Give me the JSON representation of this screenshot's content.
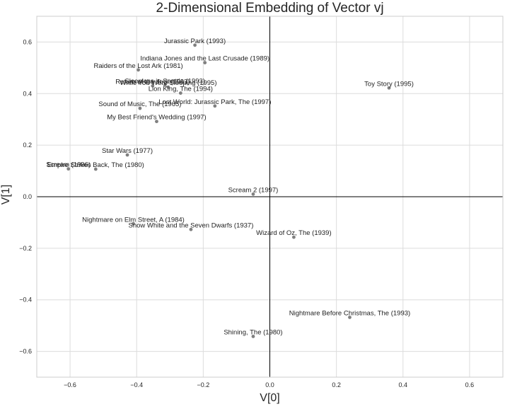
{
  "chart_data": {
    "type": "scatter",
    "title": "2-Dimensional Embedding of Vector vj",
    "xlabel": "V[0]",
    "ylabel": "V[1]",
    "xlim": [
      -0.7,
      0.7
    ],
    "ylim": [
      -0.7,
      0.7
    ],
    "xticks": [
      -0.6,
      -0.4,
      -0.2,
      0.0,
      0.2,
      0.4,
      0.6
    ],
    "yticks": [
      -0.6,
      -0.4,
      -0.2,
      0.0,
      0.2,
      0.4,
      0.6
    ],
    "xtick_labels": [
      "−0.6",
      "−0.4",
      "−0.2",
      "0.0",
      "0.2",
      "0.4",
      "0.6"
    ],
    "ytick_labels": [
      "−0.6",
      "−0.4",
      "−0.2",
      "0.0",
      "0.2",
      "0.4",
      "0.6"
    ],
    "grid": true,
    "zero_lines": true,
    "point_color": "#808080",
    "points": [
      {
        "label": "Jurassic Park (1993)",
        "x": -0.225,
        "y": 0.588
      },
      {
        "label": "Indiana Jones and the Last Crusade (1989)",
        "x": -0.195,
        "y": 0.52
      },
      {
        "label": "Raiders of the Lost Ark (1981)",
        "x": -0.395,
        "y": 0.492
      },
      {
        "label": "Return of the Jedi (1983)",
        "x": -0.352,
        "y": 0.43
      },
      {
        "label": "Sleepless in Seattle (1993)",
        "x": -0.315,
        "y": 0.433
      },
      {
        "label": "While You Were Sleeping (1995)",
        "x": -0.305,
        "y": 0.425
      },
      {
        "label": "Lion King, The (1994)",
        "x": -0.268,
        "y": 0.402
      },
      {
        "label": "Toy Story (1995)",
        "x": 0.358,
        "y": 0.422
      },
      {
        "label": "Sound of Music, The (1965)",
        "x": -0.39,
        "y": 0.343
      },
      {
        "label": "Lost World: Jurassic Park, The (1997)",
        "x": -0.165,
        "y": 0.352
      },
      {
        "label": "My Best Friend's Wedding (1997)",
        "x": -0.34,
        "y": 0.292
      },
      {
        "label": "Star Wars (1977)",
        "x": -0.428,
        "y": 0.162
      },
      {
        "label": "Scream (1996)",
        "x": -0.605,
        "y": 0.108
      },
      {
        "label": "Empire Strikes Back, The (1980)",
        "x": -0.523,
        "y": 0.107
      },
      {
        "label": "Scream 2 (1997)",
        "x": -0.05,
        "y": 0.01
      },
      {
        "label": "Nightmare on Elm Street, A (1984)",
        "x": -0.41,
        "y": -0.105
      },
      {
        "label": "Snow White and the Seven Dwarfs (1937)",
        "x": -0.237,
        "y": -0.127
      },
      {
        "label": "Wizard of Oz, The (1939)",
        "x": 0.072,
        "y": -0.157
      },
      {
        "label": "Nightmare Before Christmas, The (1993)",
        "x": 0.24,
        "y": -0.468
      },
      {
        "label": "Shining, The (1980)",
        "x": -0.05,
        "y": -0.542
      }
    ]
  }
}
